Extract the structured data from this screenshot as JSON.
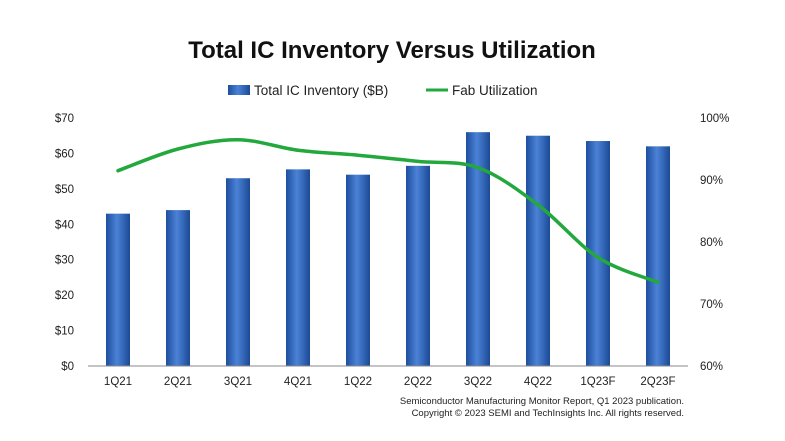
{
  "chart_data": {
    "type": "bar",
    "title": "Total IC Inventory Versus Utilization",
    "categories": [
      "1Q21",
      "2Q21",
      "3Q21",
      "4Q21",
      "1Q22",
      "2Q22",
      "3Q22",
      "4Q22",
      "1Q23F",
      "2Q23F"
    ],
    "series": [
      {
        "name": "Total IC Inventory ($B)",
        "type": "bar",
        "axis": "left",
        "color": "#2E63B8",
        "values": [
          43,
          44,
          53,
          55.5,
          54,
          56.5,
          66,
          65,
          63.5,
          62
        ]
      },
      {
        "name": "Fab Utilization",
        "type": "line",
        "axis": "right",
        "color": "#22A83C",
        "values": [
          91.5,
          95,
          96.5,
          94.8,
          94,
          93,
          92,
          86,
          77.5,
          73.5
        ]
      }
    ],
    "y_left": {
      "min": 0,
      "max": 70,
      "step": 10,
      "tick_labels": [
        "$0",
        "$10",
        "$20",
        "$30",
        "$40",
        "$50",
        "$60",
        "$70"
      ]
    },
    "y_right": {
      "min": 60,
      "max": 100,
      "step": 10,
      "tick_labels": [
        "60%",
        "70%",
        "80%",
        "90%",
        "100%"
      ]
    },
    "grid": false,
    "legend_position": "top-center"
  },
  "source": {
    "line1": "Semiconductor Manufacturing Monitor Report, Q1 2023 publication.",
    "line2": "Copyright © 2023 SEMI and TechInsights Inc. All rights reserved."
  }
}
